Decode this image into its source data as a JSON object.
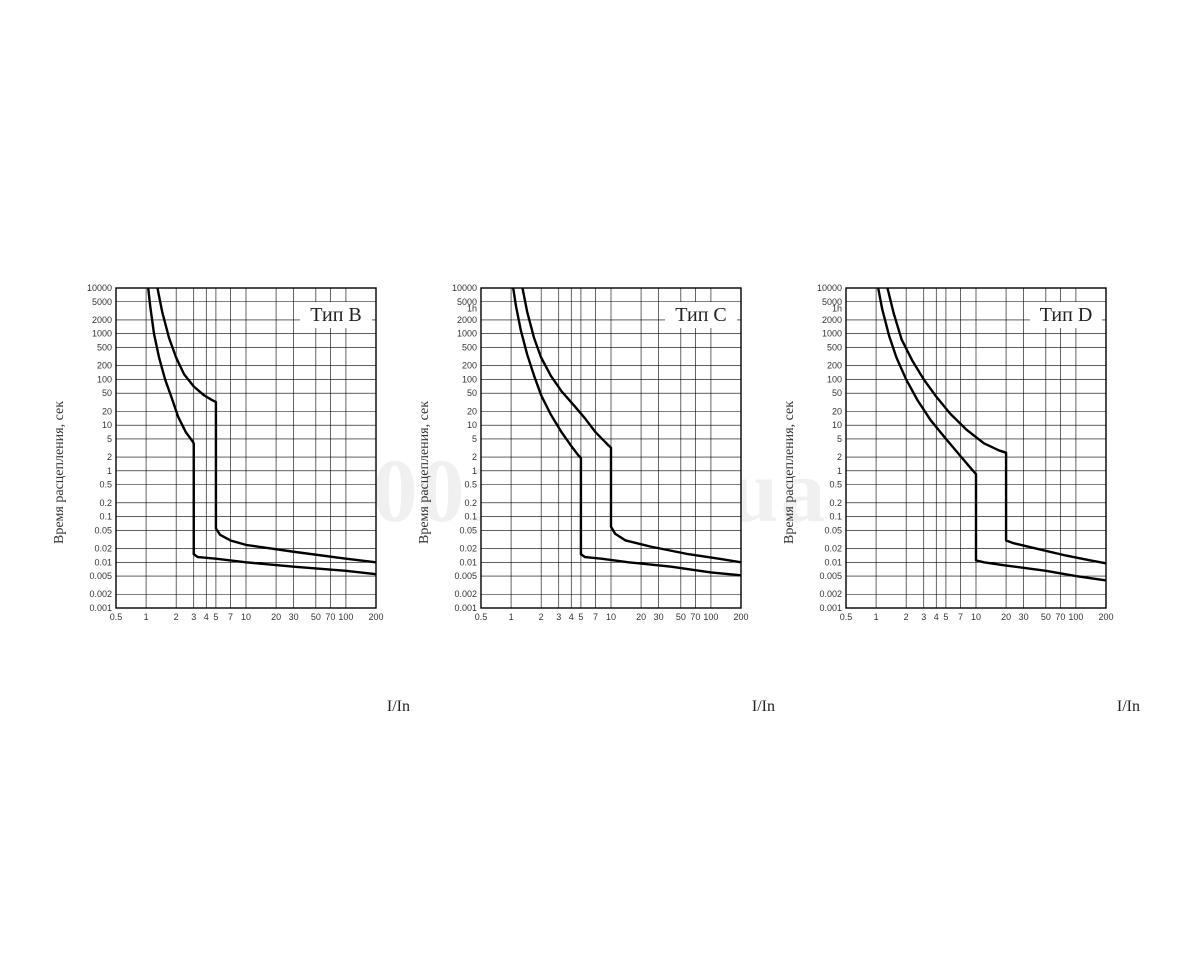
{
  "watermark": "001.com.ua",
  "axes": {
    "y_label": "Время расцепления, сек",
    "x_label": "I/In",
    "y_ticks": [
      0.001,
      0.002,
      0.005,
      0.01,
      0.02,
      0.05,
      0.1,
      0.2,
      0.5,
      1,
      2,
      5,
      10,
      20,
      50,
      100,
      200,
      500,
      1000,
      2000,
      5000,
      10000
    ],
    "y_tick_labels": [
      "0.001",
      "0.002",
      "0.005",
      "0.01",
      "0.02",
      "0.05",
      "0.1",
      "0.2",
      "0.5",
      "1",
      "2",
      "5",
      "10",
      "20",
      "50",
      "100",
      "200",
      "500",
      "1000",
      "2000",
      "5000",
      "10000"
    ],
    "extra_y_label_1h_at": 3600,
    "x_ticks": [
      0.5,
      1,
      2,
      3,
      4,
      5,
      7,
      10,
      20,
      30,
      50,
      70,
      100,
      200
    ],
    "x_tick_labels": [
      "0.5",
      "1",
      "2",
      "3",
      "4",
      "5",
      "7",
      "10",
      "20",
      "30",
      "50",
      "70",
      "100",
      "200"
    ],
    "x_min": 0.5,
    "x_max": 200,
    "y_min": 0.001,
    "y_max": 10000,
    "grid_color": "#000000",
    "grid_width": 0.6,
    "border_width": 1.4,
    "curve_color": "#000000",
    "curve_width": 2.4,
    "tick_fontsize": 9,
    "label_fontsize": 14,
    "title_fontsize": 20,
    "background_color": "#ffffff"
  },
  "panels": [
    {
      "title": "Тип B",
      "show_1h": false,
      "curve_lower": [
        [
          1.05,
          10000
        ],
        [
          1.1,
          4000
        ],
        [
          1.2,
          1000
        ],
        [
          1.35,
          300
        ],
        [
          1.55,
          100
        ],
        [
          1.8,
          40
        ],
        [
          2.1,
          15
        ],
        [
          2.5,
          7
        ],
        [
          2.9,
          4.5
        ],
        [
          3.0,
          4.0
        ],
        [
          3.0,
          0.015
        ],
        [
          3.3,
          0.013
        ],
        [
          5,
          0.012
        ],
        [
          10,
          0.01
        ],
        [
          30,
          0.008
        ],
        [
          100,
          0.0065
        ],
        [
          200,
          0.0055
        ]
      ],
      "curve_upper": [
        [
          1.3,
          10000
        ],
        [
          1.45,
          3000
        ],
        [
          1.7,
          800
        ],
        [
          2.0,
          300
        ],
        [
          2.4,
          130
        ],
        [
          3.0,
          70
        ],
        [
          3.8,
          45
        ],
        [
          4.5,
          36
        ],
        [
          5.0,
          32
        ],
        [
          5.0,
          0.055
        ],
        [
          5.5,
          0.04
        ],
        [
          7,
          0.03
        ],
        [
          10,
          0.024
        ],
        [
          30,
          0.017
        ],
        [
          100,
          0.012
        ],
        [
          200,
          0.01
        ]
      ]
    },
    {
      "title": "Тип C",
      "show_1h": true,
      "curve_lower": [
        [
          1.05,
          10000
        ],
        [
          1.12,
          4000
        ],
        [
          1.25,
          1200
        ],
        [
          1.45,
          350
        ],
        [
          1.7,
          120
        ],
        [
          2.0,
          45
        ],
        [
          2.5,
          17
        ],
        [
          3.2,
          7
        ],
        [
          4.0,
          3.5
        ],
        [
          4.7,
          2.2
        ],
        [
          5.0,
          1.9
        ],
        [
          5.0,
          0.015
        ],
        [
          5.5,
          0.013
        ],
        [
          8,
          0.012
        ],
        [
          15,
          0.01
        ],
        [
          40,
          0.008
        ],
        [
          100,
          0.006
        ],
        [
          200,
          0.0052
        ]
      ],
      "curve_upper": [
        [
          1.3,
          10000
        ],
        [
          1.45,
          3000
        ],
        [
          1.7,
          800
        ],
        [
          2.0,
          300
        ],
        [
          2.5,
          120
        ],
        [
          3.2,
          55
        ],
        [
          4.2,
          28
        ],
        [
          5.5,
          14
        ],
        [
          7.0,
          7
        ],
        [
          9.0,
          4
        ],
        [
          10.0,
          3.2
        ],
        [
          10.0,
          0.06
        ],
        [
          11,
          0.042
        ],
        [
          14,
          0.03
        ],
        [
          25,
          0.022
        ],
        [
          60,
          0.015
        ],
        [
          120,
          0.012
        ],
        [
          200,
          0.01
        ]
      ]
    },
    {
      "title": "Тип D",
      "show_1h": true,
      "curve_lower": [
        [
          1.05,
          10000
        ],
        [
          1.15,
          3500
        ],
        [
          1.35,
          900
        ],
        [
          1.6,
          300
        ],
        [
          2.0,
          100
        ],
        [
          2.6,
          35
        ],
        [
          3.5,
          13
        ],
        [
          5.0,
          5
        ],
        [
          7.0,
          2.1
        ],
        [
          9.0,
          1.1
        ],
        [
          10.0,
          0.85
        ],
        [
          10.0,
          0.011
        ],
        [
          12,
          0.01
        ],
        [
          20,
          0.0085
        ],
        [
          50,
          0.0065
        ],
        [
          100,
          0.005
        ],
        [
          200,
          0.004
        ]
      ],
      "curve_upper": [
        [
          1.3,
          10000
        ],
        [
          1.5,
          2800
        ],
        [
          1.8,
          750
        ],
        [
          2.3,
          260
        ],
        [
          3.0,
          100
        ],
        [
          4.0,
          42
        ],
        [
          5.5,
          18
        ],
        [
          8.0,
          8
        ],
        [
          12,
          4
        ],
        [
          17,
          2.8
        ],
        [
          20,
          2.5
        ],
        [
          20.0,
          0.03
        ],
        [
          24,
          0.026
        ],
        [
          40,
          0.02
        ],
        [
          80,
          0.014
        ],
        [
          140,
          0.011
        ],
        [
          200,
          0.0095
        ]
      ]
    }
  ]
}
